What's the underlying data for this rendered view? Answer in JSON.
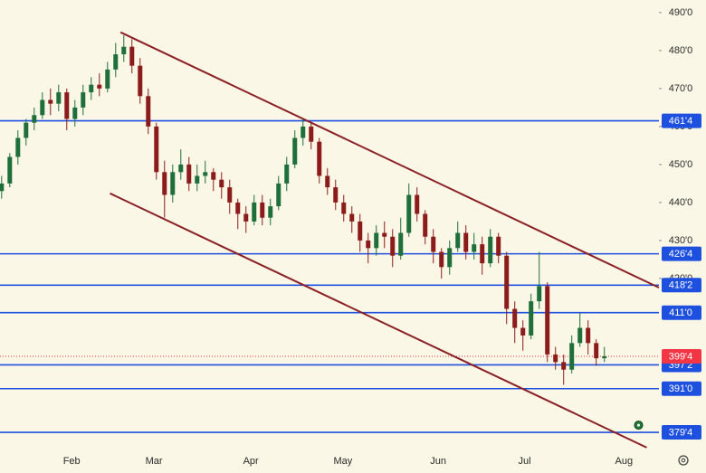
{
  "chart_data": {
    "type": "candlestick",
    "candles": [
      [
        443,
        447,
        441,
        445
      ],
      [
        445,
        453,
        444,
        452
      ],
      [
        452,
        459,
        450,
        457
      ],
      [
        457,
        462,
        455,
        461
      ],
      [
        461,
        465,
        459,
        463
      ],
      [
        463,
        469,
        462,
        467
      ],
      [
        467,
        470,
        463,
        466
      ],
      [
        466,
        471,
        464,
        469
      ],
      [
        469,
        470,
        459,
        462
      ],
      [
        462,
        467,
        460,
        465
      ],
      [
        465,
        471,
        463,
        469
      ],
      [
        469,
        473,
        467,
        471
      ],
      [
        471,
        474,
        468,
        470
      ],
      [
        470,
        477,
        469,
        475
      ],
      [
        475,
        482,
        473,
        479
      ],
      [
        479,
        484,
        477,
        481
      ],
      [
        481,
        483,
        474,
        476
      ],
      [
        476,
        478,
        466,
        468
      ],
      [
        468,
        470,
        458,
        460
      ],
      [
        460,
        461,
        446,
        448
      ],
      [
        448,
        451,
        436,
        442
      ],
      [
        442,
        450,
        440,
        448
      ],
      [
        448,
        454,
        446,
        450
      ],
      [
        450,
        452,
        443,
        445
      ],
      [
        445,
        450,
        443,
        447
      ],
      [
        447,
        451,
        445,
        448
      ],
      [
        448,
        449,
        443,
        446
      ],
      [
        446,
        448,
        441,
        444
      ],
      [
        444,
        446,
        437,
        440
      ],
      [
        440,
        441,
        433,
        437
      ],
      [
        437,
        439,
        432,
        435
      ],
      [
        435,
        442,
        434,
        440
      ],
      [
        440,
        442,
        434,
        436
      ],
      [
        436,
        441,
        434,
        439
      ],
      [
        439,
        447,
        438,
        445
      ],
      [
        445,
        452,
        443,
        450
      ],
      [
        450,
        459,
        449,
        457
      ],
      [
        457,
        462,
        455,
        460
      ],
      [
        460,
        461,
        454,
        456
      ],
      [
        456,
        457,
        445,
        447
      ],
      [
        447,
        449,
        442,
        444
      ],
      [
        444,
        446,
        438,
        440
      ],
      [
        440,
        442,
        435,
        437
      ],
      [
        437,
        439,
        432,
        435
      ],
      [
        435,
        437,
        427,
        430
      ],
      [
        430,
        432,
        424,
        428
      ],
      [
        428,
        434,
        426,
        432
      ],
      [
        432,
        435,
        428,
        431
      ],
      [
        431,
        433,
        423,
        426
      ],
      [
        426,
        436,
        425,
        432
      ],
      [
        432,
        445,
        431,
        442
      ],
      [
        442,
        444,
        435,
        437
      ],
      [
        437,
        438,
        429,
        431
      ],
      [
        431,
        433,
        424,
        427
      ],
      [
        427,
        428,
        420,
        423
      ],
      [
        423,
        430,
        421,
        428
      ],
      [
        428,
        435,
        427,
        432
      ],
      [
        432,
        434,
        425,
        427
      ],
      [
        427,
        432,
        425,
        429
      ],
      [
        429,
        431,
        421,
        424
      ],
      [
        424,
        433,
        423,
        431
      ],
      [
        431,
        432,
        424,
        426
      ],
      [
        426,
        427,
        408,
        412
      ],
      [
        412,
        414,
        403,
        407
      ],
      [
        407,
        409,
        401,
        405
      ],
      [
        405,
        416,
        404,
        414
      ],
      [
        414,
        427,
        412,
        418
      ],
      [
        418,
        419,
        398,
        400
      ],
      [
        400,
        402,
        396,
        398
      ],
      [
        398,
        400,
        392,
        396
      ],
      [
        396,
        405,
        395,
        403
      ],
      [
        403,
        411,
        402,
        407
      ],
      [
        407,
        409,
        400,
        403
      ],
      [
        403,
        404,
        397,
        399
      ],
      [
        399,
        402,
        398,
        399.5
      ]
    ],
    "up_color": "#1f6f3a",
    "down_color": "#8c1c1c",
    "xlim": [
      -0.2,
      80.7
    ],
    "ylim": [
      368.8,
      493.3
    ],
    "yticks": [
      {
        "value": 490,
        "label": "490'0"
      },
      {
        "value": 480,
        "label": "480'0"
      },
      {
        "value": 470,
        "label": "470'0"
      },
      {
        "value": 460,
        "label": "460'0"
      },
      {
        "value": 450,
        "label": "450'0"
      },
      {
        "value": 440,
        "label": "440'0"
      },
      {
        "value": 430,
        "label": "430'0"
      },
      {
        "value": 420,
        "label": "420'0"
      }
    ],
    "xticks": [
      {
        "value": 8.6,
        "label": "Feb"
      },
      {
        "value": 18.7,
        "label": "Mar"
      },
      {
        "value": 30.6,
        "label": "Apr"
      },
      {
        "value": 41.9,
        "label": "May"
      },
      {
        "value": 53.6,
        "label": "Jun"
      },
      {
        "value": 64.2,
        "label": "Jul"
      },
      {
        "value": 76.4,
        "label": "Aug"
      }
    ],
    "levels": [
      {
        "value": 461.5,
        "label": "461'4"
      },
      {
        "value": 426.5,
        "label": "426'4"
      },
      {
        "value": 418.25,
        "label": "418'2"
      },
      {
        "value": 411,
        "label": "411'0"
      },
      {
        "value": 397.25,
        "label": "397'2"
      },
      {
        "value": 391,
        "label": "391'0"
      },
      {
        "value": 379.5,
        "label": "379'4"
      }
    ],
    "level_color": "#1e50e0",
    "last_price": {
      "value": 399.5,
      "label": "399'4"
    },
    "last_color": "#f23645",
    "trendlines": [
      {
        "x": [
          14.6,
          80.7
        ],
        "y": [
          484.8,
          417.6
        ]
      },
      {
        "x": [
          13.3,
          79.2
        ],
        "y": [
          442.4,
          375.5
        ]
      }
    ],
    "trendline_color": "#8b1f24",
    "marker": {
      "x": 78.2,
      "y": 381.4,
      "color": "#1e7a34"
    }
  }
}
